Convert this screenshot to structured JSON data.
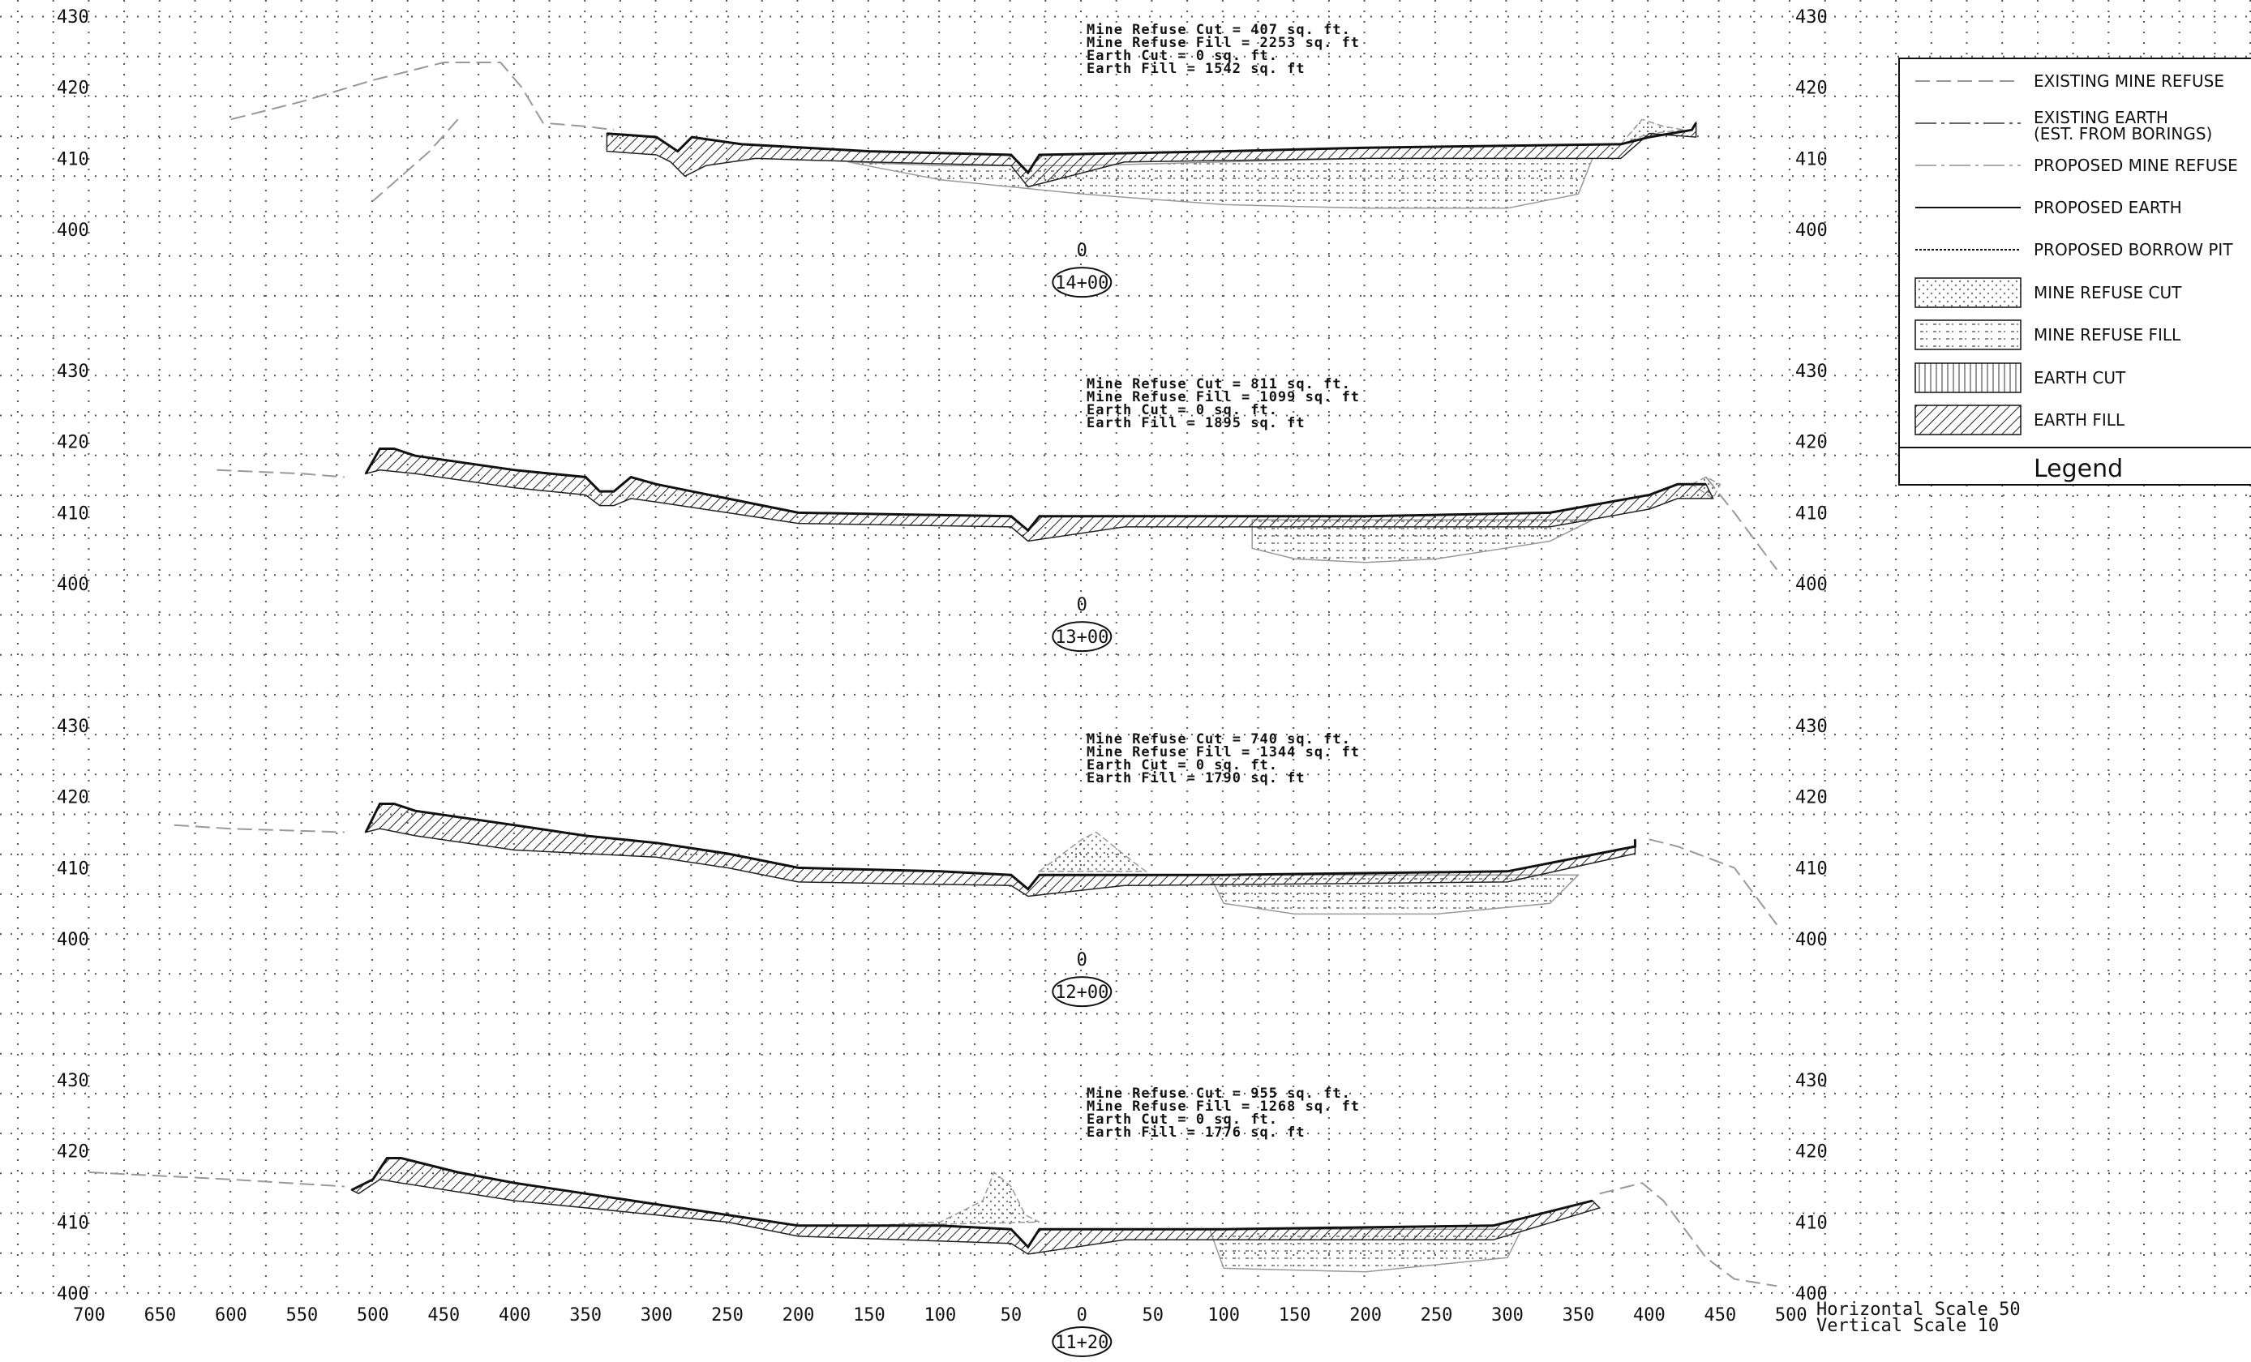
{
  "drawing": {
    "scale_note": {
      "horizontal": "Horizontal Scale 50",
      "vertical": "Vertical Scale 10"
    },
    "x_axis_ticks": [
      "700",
      "650",
      "600",
      "550",
      "500",
      "450",
      "400",
      "350",
      "300",
      "250",
      "200",
      "150",
      "100",
      "50",
      "0",
      "50",
      "100",
      "150",
      "200",
      "250",
      "300",
      "350",
      "400",
      "450",
      "500"
    ],
    "elevation_ticks": [
      "430",
      "420",
      "410",
      "400"
    ],
    "sections": [
      {
        "station": "14+00",
        "offset_label": "0",
        "quantities": [
          "Mine Refuse Cut = 407 sq. ft.",
          "Mine Refuse Fill = 2253 sq. ft",
          "Earth Cut = 0 sq. ft.",
          "Earth Fill = 1542 sq. ft"
        ]
      },
      {
        "station": "13+00",
        "offset_label": "0",
        "quantities": [
          "Mine Refuse Cut = 811 sq. ft.",
          "Mine Refuse Fill = 1099 sq. ft",
          "Earth Cut = 0 sq. ft.",
          "Earth Fill = 1895 sq. ft"
        ]
      },
      {
        "station": "12+00",
        "offset_label": "0",
        "quantities": [
          "Mine Refuse Cut = 740 sq. ft.",
          "Mine Refuse Fill = 1344 sq. ft",
          "Earth Cut = 0 sq. ft.",
          "Earth Fill = 1790 sq. ft"
        ]
      },
      {
        "station": "11+20",
        "offset_label": "",
        "quantities": [
          "Mine Refuse Cut = 955 sq. ft.",
          "Mine Refuse Fill = 1268 sq. ft",
          "Earth Cut = 0 sq. ft.",
          "Earth Fill = 1776 sq. ft"
        ]
      }
    ]
  },
  "legend": {
    "title": "Legend",
    "items": [
      {
        "id": "existing-mine-refuse",
        "label": "EXISTING MINE REFUSE"
      },
      {
        "id": "existing-earth",
        "label": "EXISTING EARTH",
        "label2": "(EST. FROM BORINGS)"
      },
      {
        "id": "proposed-mine-refuse",
        "label": "PROPOSED MINE REFUSE"
      },
      {
        "id": "proposed-earth",
        "label": "PROPOSED EARTH"
      },
      {
        "id": "proposed-borrow-pit",
        "label": "PROPOSED BORROW PIT"
      },
      {
        "id": "mine-refuse-cut",
        "label": "MINE REFUSE CUT"
      },
      {
        "id": "mine-refuse-fill",
        "label": "MINE REFUSE FILL"
      },
      {
        "id": "earth-cut",
        "label": "EARTH CUT"
      },
      {
        "id": "earth-fill",
        "label": "EARTH FILL"
      }
    ]
  }
}
